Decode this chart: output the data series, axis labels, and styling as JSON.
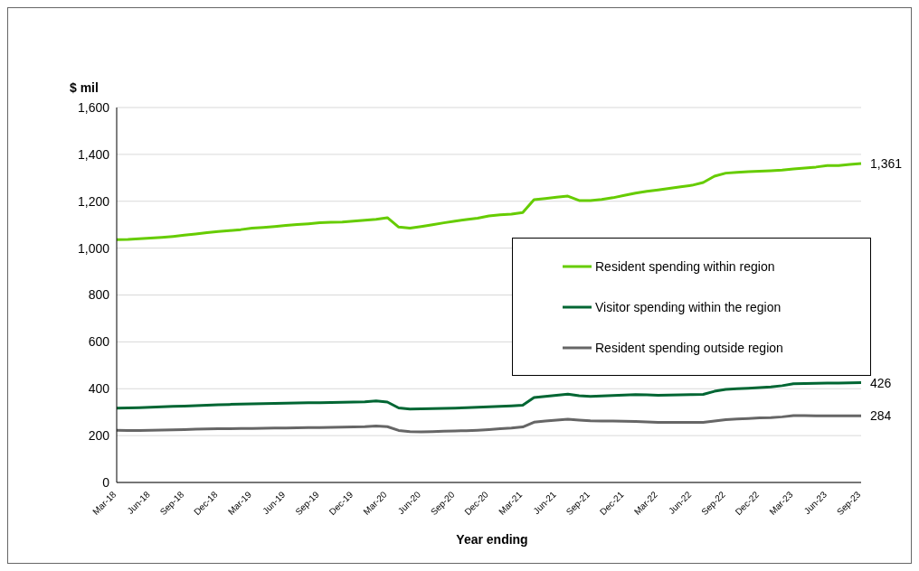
{
  "chart_data": {
    "type": "line",
    "ylabel": "$ mil",
    "xlabel": "Year ending",
    "categories": [
      "Mar-18",
      null,
      null,
      "Jun-18",
      null,
      null,
      "Sep-18",
      null,
      null,
      "Dec-18",
      null,
      null,
      "Mar-19",
      null,
      null,
      "Jun-19",
      null,
      null,
      "Sep-19",
      null,
      null,
      "Dec-19",
      null,
      null,
      "Mar-20",
      null,
      null,
      "Jun-20",
      null,
      null,
      "Sep-20",
      null,
      null,
      "Dec-20",
      null,
      null,
      "Mar-21",
      null,
      null,
      "Jun-21",
      null,
      null,
      "Sep-21",
      null,
      null,
      "Dec-21",
      null,
      null,
      "Mar-22",
      null,
      null,
      "Jun-22",
      null,
      null,
      "Sep-22",
      null,
      null,
      "Dec-22",
      null,
      null,
      "Mar-23",
      null,
      null,
      "Jun-23",
      null,
      null,
      "Sep-23"
    ],
    "series": [
      {
        "name": "Resident spending within region",
        "color": "#66cc00",
        "values": [
          1036,
          1037,
          1040,
          1043,
          1046,
          1050,
          1055,
          1060,
          1066,
          1071,
          1075,
          1079,
          1085,
          1088,
          1092,
          1097,
          1101,
          1104,
          1108,
          1110,
          1111,
          1115,
          1119,
          1123,
          1130,
          1090,
          1085,
          1092,
          1100,
          1108,
          1115,
          1122,
          1128,
          1137,
          1142,
          1145,
          1152,
          1207,
          1212,
          1217,
          1222,
          1203,
          1203,
          1208,
          1215,
          1225,
          1235,
          1242,
          1248,
          1255,
          1262,
          1268,
          1280,
          1307,
          1320,
          1323,
          1326,
          1328,
          1330,
          1333,
          1338,
          1342,
          1346,
          1352,
          1352,
          1357,
          1361
        ],
        "value_labels": [
          null,
          null,
          null,
          null,
          null,
          null,
          null,
          null,
          null,
          null,
          null,
          null,
          null,
          null,
          null,
          null,
          null,
          null,
          null,
          null,
          null,
          null,
          null,
          null,
          null,
          null,
          null,
          null,
          null,
          null,
          null,
          null,
          null,
          null,
          null,
          null,
          null,
          null,
          null,
          null,
          null,
          null,
          null,
          null,
          null,
          null,
          null,
          null,
          null,
          null,
          null,
          null,
          null,
          null,
          null,
          null,
          null,
          null,
          null,
          null,
          null,
          null,
          null,
          null,
          null,
          null,
          "1,361"
        ]
      },
      {
        "name": "Visitor spending within the region",
        "color": "#006633",
        "values": [
          317,
          318,
          319,
          321,
          323,
          325,
          326,
          328,
          330,
          332,
          333,
          334,
          335,
          336,
          337,
          338,
          339,
          340,
          340,
          341,
          342,
          343,
          344,
          348,
          343,
          318,
          313,
          314,
          315,
          316,
          317,
          319,
          321,
          323,
          325,
          327,
          330,
          362,
          367,
          372,
          377,
          370,
          367,
          369,
          371,
          373,
          375,
          374,
          372,
          373,
          374,
          375,
          376,
          389,
          397,
          400,
          402,
          405,
          408,
          413,
          421,
          422,
          423,
          424,
          424,
          425,
          426
        ],
        "value_labels": [
          null,
          null,
          null,
          null,
          null,
          null,
          null,
          null,
          null,
          null,
          null,
          null,
          null,
          null,
          null,
          null,
          null,
          null,
          null,
          null,
          null,
          null,
          null,
          null,
          null,
          null,
          null,
          null,
          null,
          null,
          null,
          null,
          null,
          null,
          null,
          null,
          null,
          null,
          null,
          null,
          null,
          null,
          null,
          null,
          null,
          null,
          null,
          null,
          null,
          null,
          null,
          null,
          null,
          null,
          null,
          null,
          null,
          null,
          null,
          null,
          null,
          null,
          null,
          null,
          null,
          null,
          "426"
        ]
      },
      {
        "name": "Resident spending outside region",
        "color": "#666666",
        "values": [
          223,
          222,
          222,
          223,
          224,
          225,
          226,
          227,
          228,
          229,
          229,
          230,
          230,
          231,
          232,
          232,
          233,
          234,
          234,
          235,
          236,
          237,
          238,
          241,
          238,
          222,
          217,
          216,
          217,
          219,
          220,
          221,
          223,
          226,
          229,
          232,
          237,
          257,
          262,
          266,
          270,
          266,
          263,
          262,
          262,
          261,
          260,
          258,
          256,
          256,
          256,
          256,
          256,
          262,
          268,
          271,
          273,
          276,
          277,
          280,
          285,
          285,
          284,
          284,
          284,
          284,
          284
        ],
        "value_labels": [
          null,
          null,
          null,
          null,
          null,
          null,
          null,
          null,
          null,
          null,
          null,
          null,
          null,
          null,
          null,
          null,
          null,
          null,
          null,
          null,
          null,
          null,
          null,
          null,
          null,
          null,
          null,
          null,
          null,
          null,
          null,
          null,
          null,
          null,
          null,
          null,
          null,
          null,
          null,
          null,
          null,
          null,
          null,
          null,
          null,
          null,
          null,
          null,
          null,
          null,
          null,
          null,
          null,
          null,
          null,
          null,
          null,
          null,
          null,
          null,
          null,
          null,
          null,
          null,
          null,
          null,
          "284"
        ]
      }
    ],
    "ylim": [
      0,
      1600
    ],
    "yticks": [
      {
        "value": 0,
        "label": "0"
      },
      {
        "value": 200,
        "label": "200"
      },
      {
        "value": 400,
        "label": "400"
      },
      {
        "value": 600,
        "label": "600"
      },
      {
        "value": 800,
        "label": "800"
      },
      {
        "value": 1000,
        "label": "1,000"
      },
      {
        "value": 1200,
        "label": "1,200"
      },
      {
        "value": 1400,
        "label": "1,400"
      },
      {
        "value": 1600,
        "label": "1,600"
      }
    ],
    "grid": "y",
    "legend": "right",
    "marker": "none",
    "line_style": "solid"
  }
}
